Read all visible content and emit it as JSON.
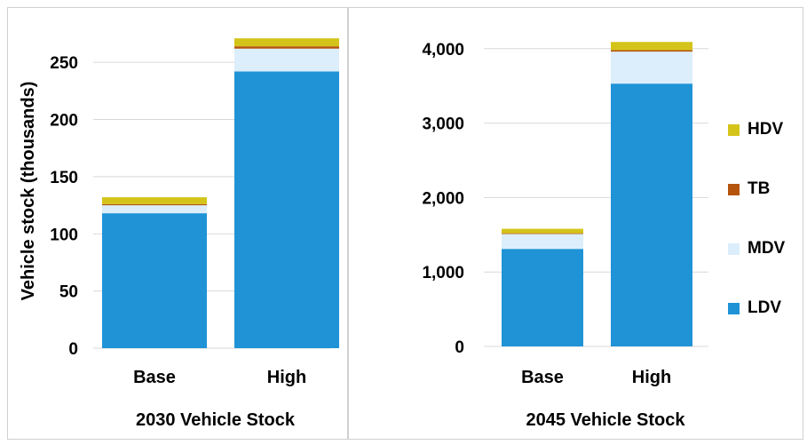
{
  "colors": {
    "LDV": "#1f93d6",
    "MDV": "#dceefb",
    "TB": "#b5540c",
    "HDV": "#d4c41a"
  },
  "legend": [
    {
      "key": "HDV",
      "label": "HDV"
    },
    {
      "key": "TB",
      "label": "TB"
    },
    {
      "key": "MDV",
      "label": "MDV"
    },
    {
      "key": "LDV",
      "label": "LDV"
    }
  ],
  "chart_data": [
    {
      "type": "bar",
      "stacked": true,
      "title": "2030 Vehicle Stock",
      "ylabel": "Vehicle stock (thousands)",
      "xlabel": "",
      "categories": [
        "Base",
        "High"
      ],
      "ylim": [
        0,
        275
      ],
      "yticks": [
        0,
        50,
        100,
        150,
        200,
        250
      ],
      "ytick_labels": [
        "0",
        "50",
        "100",
        "150",
        "200",
        "250"
      ],
      "grid": true,
      "series": [
        {
          "name": "LDV",
          "values": [
            118,
            242
          ]
        },
        {
          "name": "MDV",
          "values": [
            7,
            20
          ]
        },
        {
          "name": "TB",
          "values": [
            1,
            2
          ]
        },
        {
          "name": "HDV",
          "values": [
            6,
            7
          ]
        }
      ]
    },
    {
      "type": "bar",
      "stacked": true,
      "title": "2045 Vehicle Stock",
      "ylabel": "",
      "xlabel": "",
      "categories": [
        "Base",
        "High"
      ],
      "ylim": [
        0,
        4200
      ],
      "yticks": [
        0,
        1000,
        2000,
        3000,
        4000
      ],
      "ytick_labels": [
        "0",
        "1,000",
        "2,000",
        "3,000",
        "4,000"
      ],
      "grid": true,
      "series": [
        {
          "name": "LDV",
          "values": [
            1310,
            3530
          ]
        },
        {
          "name": "MDV",
          "values": [
            200,
            430
          ]
        },
        {
          "name": "TB",
          "values": [
            10,
            20
          ]
        },
        {
          "name": "HDV",
          "values": [
            60,
            110
          ]
        }
      ]
    }
  ]
}
